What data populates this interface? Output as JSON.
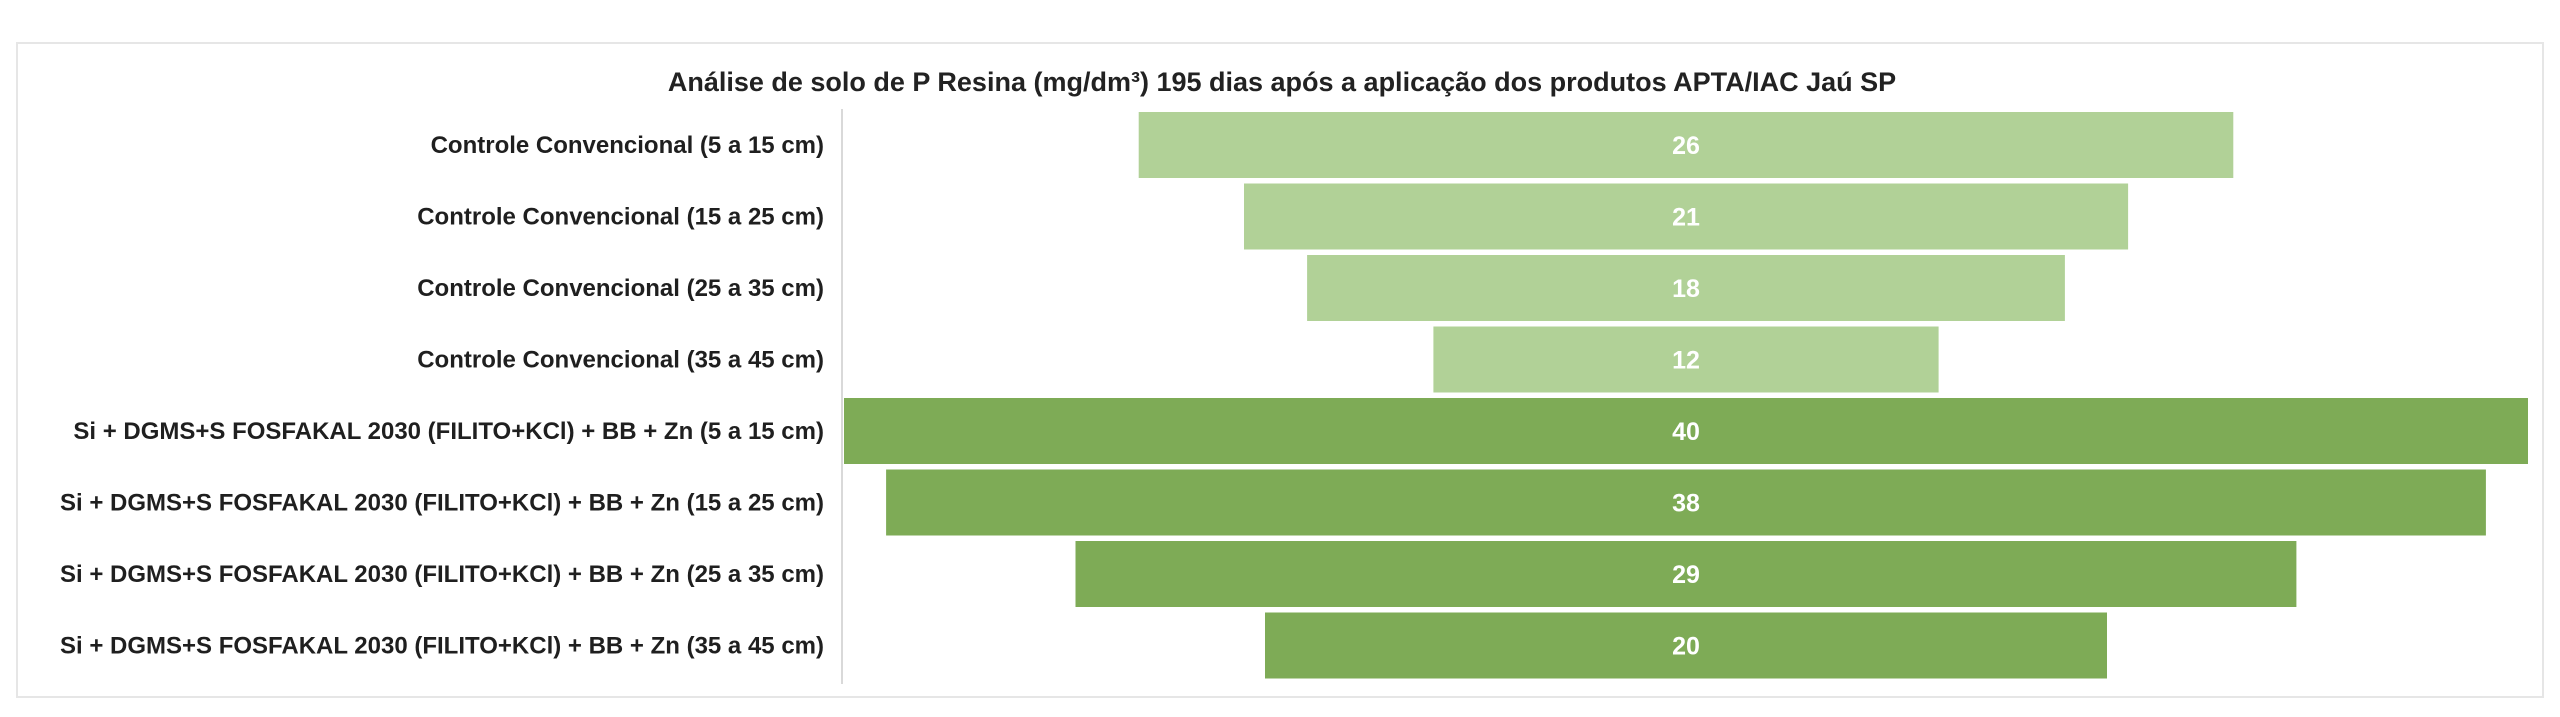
{
  "chart_data": {
    "type": "bar",
    "orientation": "horizontal",
    "style": "funnel (centered bars)",
    "title": "Análise de solo de P Resina (mg/dm³) 195 dias após a aplicação dos produtos APTA/IAC Jaú SP",
    "xlabel": "",
    "ylabel": "",
    "categories": [
      "Controle Convencional  (5 a 15 cm)",
      "Controle Convencional  (15 a 25 cm)",
      "Controle Convencional  (25 a 35 cm)",
      "Controle Convencional  (35 a 45 cm)",
      "Si + DGMS+S FOSFAKAL 2030 (FILITO+KCl) + BB + Zn (5 a 15 cm)",
      "Si + DGMS+S FOSFAKAL 2030 (FILITO+KCl) + BB + Zn  (15 a 25 cm)",
      "Si + DGMS+S FOSFAKAL 2030 (FILITO+KCl) + BB + Zn (25 a 35 cm)",
      "Si + DGMS+S FOSFAKAL 2030 (FILITO+KCl) + BB + Zn (35 a 45 cm)"
    ],
    "values": [
      26,
      21,
      18,
      12,
      40,
      38,
      29,
      20
    ],
    "value_labels": [
      "26",
      "21",
      "18",
      "12",
      "40",
      "38",
      "29",
      "20"
    ],
    "xlim": [
      0,
      40
    ],
    "grid": false,
    "legend": "none",
    "colors": {
      "controle": "#b1d197",
      "tratamento": "#7eab56",
      "bar_text": "#ffffff",
      "axis_line": "#d9d9d9"
    },
    "bar_groups": [
      "controle",
      "controle",
      "controle",
      "controle",
      "tratamento",
      "tratamento",
      "tratamento",
      "tratamento"
    ]
  }
}
